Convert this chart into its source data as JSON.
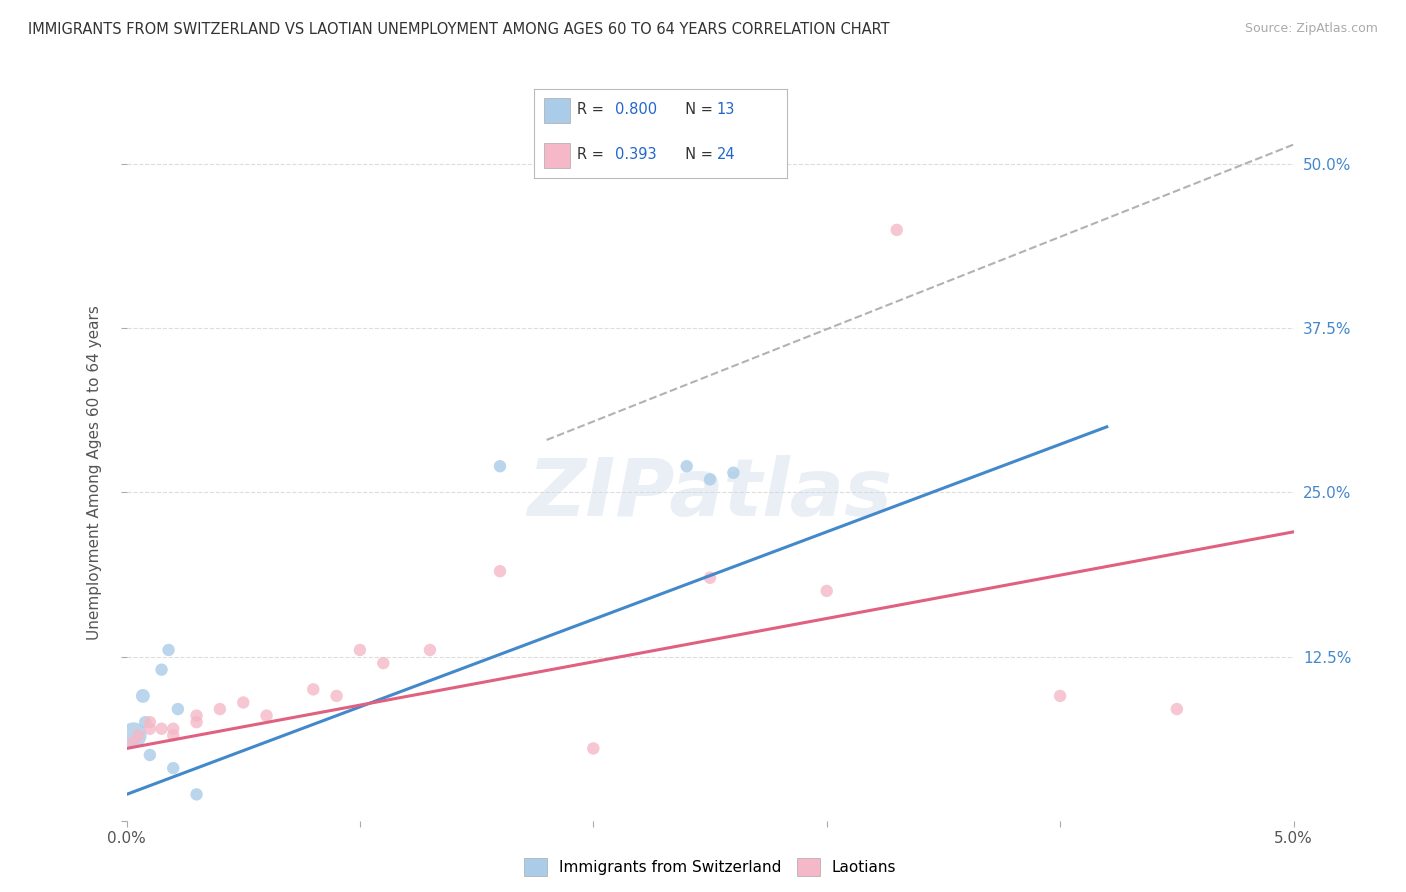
{
  "title": "IMMIGRANTS FROM SWITZERLAND VS LAOTIAN UNEMPLOYMENT AMONG AGES 60 TO 64 YEARS CORRELATION CHART",
  "source": "Source: ZipAtlas.com",
  "ylabel": "Unemployment Among Ages 60 to 64 years",
  "xlim": [
    0.0,
    0.05
  ],
  "ylim": [
    0.0,
    0.53
  ],
  "xticks": [
    0.0,
    0.01,
    0.02,
    0.03,
    0.04,
    0.05
  ],
  "xtick_labels": [
    "0.0%",
    "",
    "",
    "",
    "",
    "5.0%"
  ],
  "ytick_labels": [
    "",
    "12.5%",
    "25.0%",
    "37.5%",
    "50.0%"
  ],
  "yticks": [
    0.0,
    0.125,
    0.25,
    0.375,
    0.5
  ],
  "swiss_color": "#aacce8",
  "laotian_color": "#f4b8c8",
  "swiss_line_color": "#4488cc",
  "laotian_line_color": "#e06080",
  "dashed_line_color": "#aaaaaa",
  "watermark": "ZIPatlas",
  "swiss_points_x": [
    0.0003,
    0.0007,
    0.0008,
    0.001,
    0.0015,
    0.0018,
    0.002,
    0.0022,
    0.003,
    0.016,
    0.024,
    0.025,
    0.026
  ],
  "swiss_points_y": [
    0.065,
    0.095,
    0.075,
    0.05,
    0.115,
    0.13,
    0.04,
    0.085,
    0.02,
    0.27,
    0.27,
    0.26,
    0.265
  ],
  "swiss_sizes": [
    350,
    100,
    80,
    80,
    80,
    80,
    80,
    80,
    80,
    80,
    80,
    80,
    80
  ],
  "laotian_points_x": [
    0.0003,
    0.0005,
    0.001,
    0.001,
    0.0015,
    0.002,
    0.002,
    0.003,
    0.003,
    0.004,
    0.005,
    0.006,
    0.008,
    0.009,
    0.01,
    0.011,
    0.013,
    0.016,
    0.02,
    0.025,
    0.03,
    0.033,
    0.04,
    0.045
  ],
  "laotian_points_y": [
    0.06,
    0.065,
    0.075,
    0.07,
    0.07,
    0.065,
    0.07,
    0.075,
    0.08,
    0.085,
    0.09,
    0.08,
    0.1,
    0.095,
    0.13,
    0.12,
    0.13,
    0.19,
    0.055,
    0.185,
    0.175,
    0.45,
    0.095,
    0.085
  ],
  "laotian_sizes": [
    80,
    80,
    80,
    80,
    80,
    80,
    80,
    80,
    80,
    80,
    80,
    80,
    80,
    80,
    80,
    80,
    80,
    80,
    80,
    80,
    80,
    80,
    80,
    80
  ],
  "background_color": "#ffffff",
  "grid_color": "#dddddd",
  "swiss_line_x": [
    0.0,
    0.042
  ],
  "swiss_line_y": [
    0.02,
    0.3
  ],
  "laotian_line_x": [
    0.0,
    0.05
  ],
  "laotian_line_y": [
    0.055,
    0.22
  ],
  "diag_line_x": [
    0.018,
    0.05
  ],
  "diag_line_y": [
    0.29,
    0.515
  ]
}
